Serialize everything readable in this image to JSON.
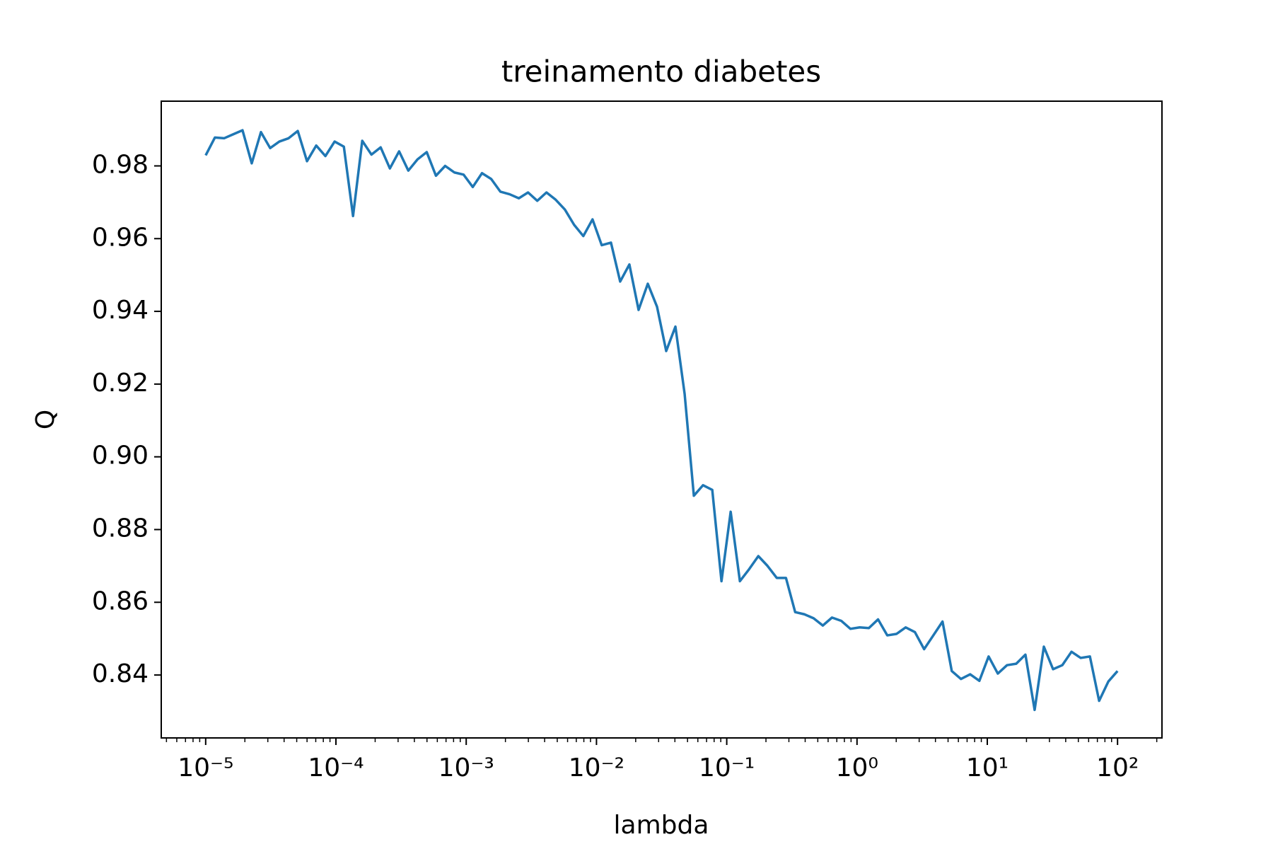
{
  "chart_data": {
    "type": "line",
    "title": "treinamento diabetes",
    "x_label": "lambda",
    "y_label": "Q",
    "xscale": "log",
    "minor_ticks": true,
    "color": "#1f77b4",
    "xlim": [
      4.56e-06,
      219.3
    ],
    "ylim": [
      0.8227,
      0.9978
    ],
    "xticks": [
      {
        "value": 1e-05,
        "label": "10⁻⁵"
      },
      {
        "value": 0.0001,
        "label": "10⁻⁴"
      },
      {
        "value": 0.001,
        "label": "10⁻³"
      },
      {
        "value": 0.01,
        "label": "10⁻²"
      },
      {
        "value": 0.1,
        "label": "10⁻¹"
      },
      {
        "value": 1,
        "label": "10⁰"
      },
      {
        "value": 10,
        "label": "10¹"
      },
      {
        "value": 100,
        "label": "10²"
      }
    ],
    "yticks": [
      0.84,
      0.86,
      0.88,
      {
        "value": 0.9,
        "label": "0.90"
      },
      0.92,
      0.94,
      0.96,
      0.98
    ],
    "x": [
      1e-05,
      1.177e-05,
      1.385e-05,
      1.63e-05,
      1.918e-05,
      2.257e-05,
      2.656e-05,
      3.126e-05,
      3.678e-05,
      4.329e-05,
      5.094e-05,
      5.995e-05,
      7.055e-05,
      8.302e-05,
      9.77e-05,
      0.000115,
      0.0001353,
      0.0001592,
      0.0001874,
      0.0002205,
      0.0002595,
      0.0003054,
      0.0003594,
      0.0004229,
      0.0004977,
      0.0005857,
      0.0006893,
      0.0008111,
      0.0009545,
      0.001123,
      0.001322,
      0.001556,
      0.001831,
      0.002154,
      0.002535,
      0.002984,
      0.003511,
      0.004132,
      0.004863,
      0.005722,
      0.006734,
      0.007925,
      0.009326,
      0.01097,
      0.01292,
      0.0152,
      0.01789,
      0.02105,
      0.02477,
      0.02915,
      0.0343,
      0.04037,
      0.04751,
      0.05591,
      0.06579,
      0.07743,
      0.09112,
      0.1072,
      0.1262,
      0.1485,
      0.1748,
      0.2057,
      0.242,
      0.2848,
      0.3352,
      0.3944,
      0.4642,
      0.5462,
      0.6428,
      0.7565,
      0.8902,
      1.048,
      1.233,
      1.451,
      1.707,
      2.009,
      2.364,
      2.783,
      3.275,
      3.854,
      4.535,
      5.337,
      6.28,
      7.391,
      8.697,
      10.24,
      12.05,
      14.17,
      16.68,
      19.63,
      23.1,
      27.19,
      31.99,
      37.65,
      44.31,
      52.14,
      61.36,
      72.21,
      84.97,
      100
    ],
    "values": [
      0.9829,
      0.9878,
      0.9876,
      0.9887,
      0.9898,
      0.9807,
      0.9893,
      0.9849,
      0.9867,
      0.9876,
      0.9896,
      0.9813,
      0.9856,
      0.9827,
      0.9867,
      0.9853,
      0.9662,
      0.9869,
      0.9831,
      0.9851,
      0.9793,
      0.984,
      0.9787,
      0.9818,
      0.9838,
      0.9773,
      0.98,
      0.9782,
      0.9776,
      0.9742,
      0.978,
      0.9764,
      0.9729,
      0.9722,
      0.9711,
      0.9727,
      0.9704,
      0.9727,
      0.9707,
      0.968,
      0.9638,
      0.9607,
      0.9653,
      0.9582,
      0.9589,
      0.9482,
      0.9529,
      0.9404,
      0.9476,
      0.9413,
      0.9291,
      0.9358,
      0.9173,
      0.8893,
      0.8922,
      0.8909,
      0.8658,
      0.8849,
      0.8658,
      0.8691,
      0.8727,
      0.87,
      0.8667,
      0.8667,
      0.8573,
      0.8567,
      0.8556,
      0.8536,
      0.8558,
      0.8549,
      0.8527,
      0.8531,
      0.8529,
      0.8553,
      0.8509,
      0.8513,
      0.8531,
      0.8518,
      0.8471,
      0.8509,
      0.8547,
      0.8411,
      0.8389,
      0.8402,
      0.8384,
      0.8451,
      0.8404,
      0.8427,
      0.8431,
      0.8456,
      0.8304,
      0.8478,
      0.8416,
      0.8427,
      0.8464,
      0.8447,
      0.8451,
      0.8329,
      0.8382,
      0.8411
    ]
  }
}
